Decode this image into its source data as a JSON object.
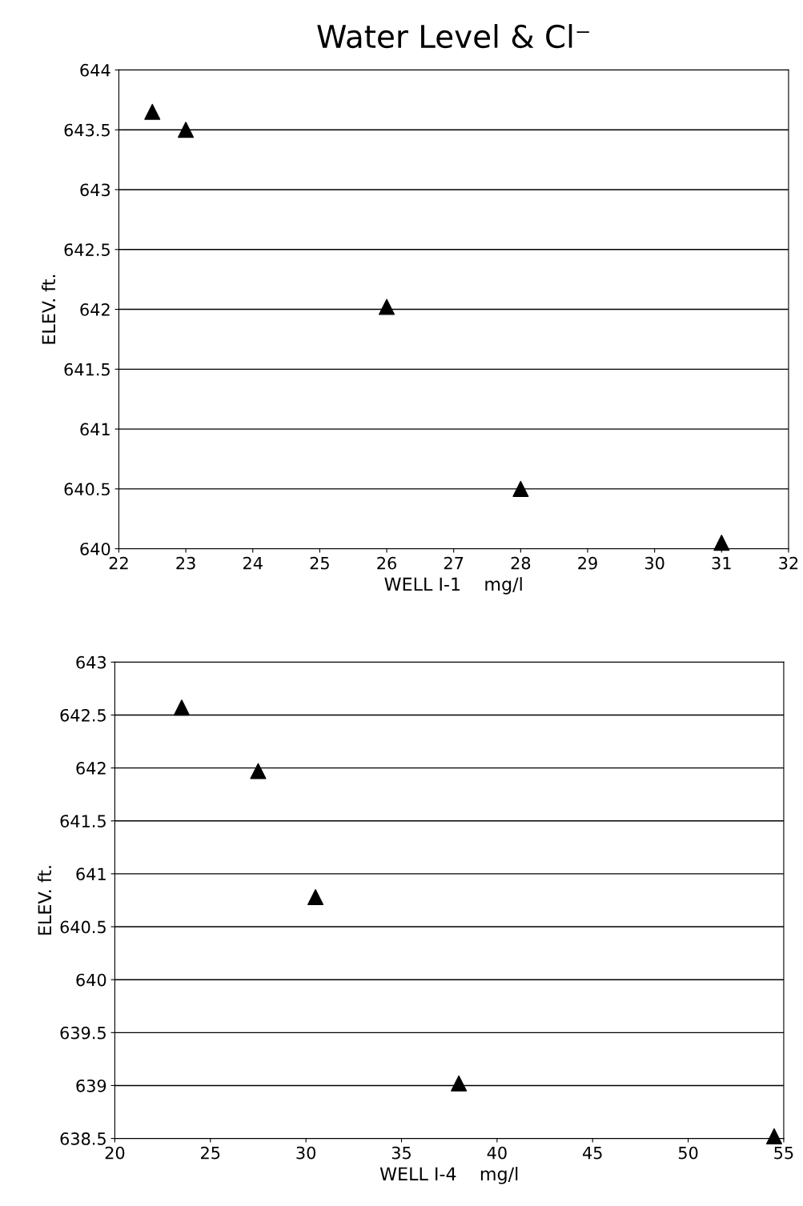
{
  "chart_data": [
    {
      "type": "scatter",
      "title": "Water Level & Cl⁻",
      "xlabel": "WELL I-1    mg/l",
      "ylabel": "ELEV. ft.",
      "x": [
        22.5,
        23,
        26,
        28,
        31
      ],
      "series": [
        {
          "color": "#000000",
          "values": [
            643.65,
            643.5,
            642.02,
            640.5,
            640.05
          ]
        }
      ],
      "xlim": [
        22,
        32
      ],
      "xticks": [
        22,
        23,
        24,
        25,
        26,
        27,
        28,
        29,
        30,
        31,
        32
      ],
      "ylim": [
        640,
        644
      ],
      "yticks": [
        640,
        640.5,
        641,
        641.5,
        642,
        642.5,
        643,
        643.5,
        644
      ],
      "grid": "y",
      "marker": "triangle"
    },
    {
      "type": "scatter",
      "xlabel": "WELL I-4    mg/l",
      "ylabel": "ELEV. ft.",
      "x": [
        23.5,
        27.5,
        30.5,
        38,
        54.5
      ],
      "series": [
        {
          "color": "#000000",
          "values": [
            642.57,
            641.97,
            640.78,
            639.02,
            638.52
          ]
        }
      ],
      "xlim": [
        20,
        55
      ],
      "xticks": [
        20,
        25,
        30,
        35,
        40,
        45,
        50,
        55
      ],
      "ylim": [
        638.5,
        643
      ],
      "yticks": [
        638.5,
        639,
        639.5,
        640,
        640.5,
        641,
        641.5,
        642,
        642.5,
        643
      ],
      "grid": "y",
      "marker": "triangle"
    }
  ]
}
